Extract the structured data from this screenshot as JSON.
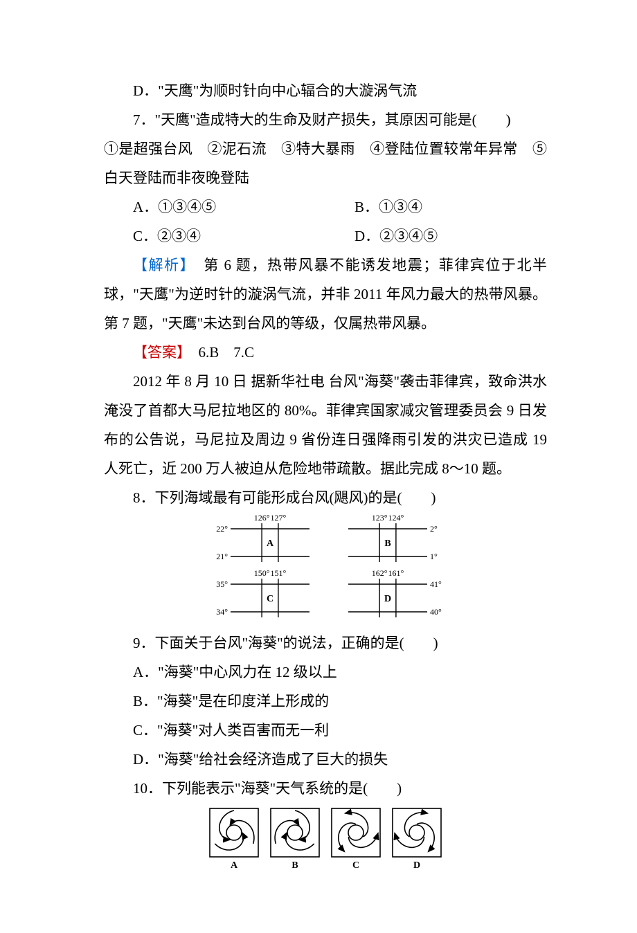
{
  "line_D": "D．\"天鹰\"为顺时针向中心辐合的大漩涡气流",
  "q7": {
    "stem": "7．\"天鹰\"造成特大的生命及财产损失，其原因可能是(　　)",
    "options_line": "①是超强台风　②泥石流　③特大暴雨　④登陆位置较常年异常　⑤白天登陆而非夜晚登陆",
    "A": "A．①③④⑤",
    "B": "B．①③④",
    "C": "C．②③④",
    "D": "D．②③④⑤"
  },
  "analysis": {
    "label": "【解析】",
    "text": "　第 6 题，热带风暴不能诱发地震；菲律宾位于北半球，\"天鹰\"为逆时针的漩涡气流，并非 2011 年风力最大的热带风暴。第 7 题，\"天鹰\"未达到台风的等级，仅属热带风暴。"
  },
  "answer": {
    "label": "【答案】",
    "text": "　6.B　7.C"
  },
  "passage": "2012 年 8 月 10 日 据新华社电 台风\"海葵\"袭击菲律宾，致命洪水淹没了首都大马尼拉地区的 80%。菲律宾国家减灾管理委员会 9 日发布的公告说，马尼拉及周边 9 省份连日强降雨引发的洪灾已造成 19 人死亡，近 200 万人被迫从危险地带疏散。据此完成 8～10 题。",
  "q8": {
    "stem": "8．下列海域最有可能形成台风(飓风)的是(　　)",
    "grids": {
      "stroke": "#000000",
      "fill": "#ffffff",
      "font_size": 12,
      "A": {
        "lon_left": "126°",
        "lon_right": "127°",
        "lat_top": "22°",
        "lat_bottom": "21°",
        "label": "A"
      },
      "B": {
        "lon_left": "123°",
        "lon_right": "124°",
        "lat_top": "2°",
        "lat_bottom": "1°",
        "label": "B"
      },
      "C": {
        "lon_left": "150°",
        "lon_right": "151°",
        "lat_top": "35°",
        "lat_bottom": "34°",
        "label": "C"
      },
      "D": {
        "lon_left": "162°",
        "lon_right": "161°",
        "lat_top": "41°",
        "lat_bottom": "40°",
        "label": "D"
      }
    }
  },
  "q9": {
    "stem": "9．下面关于台风\"海葵\"的说法，正确的是(　　)",
    "A": "A．\"海葵\"中心风力在 12 级以上",
    "B": "B．\"海葵\"是在印度洋上形成的",
    "C": "C．\"海葵\"对人类百害而无一利",
    "D": "D．\"海葵\"给社会经济造成了巨大的损失"
  },
  "q10": {
    "stem": "10．下列能表示\"海葵\"天气系统的是(　　)",
    "diagrams": {
      "stroke": "#000000",
      "fill": "#ffffff",
      "labels": [
        "A",
        "B",
        "C",
        "D"
      ]
    }
  }
}
